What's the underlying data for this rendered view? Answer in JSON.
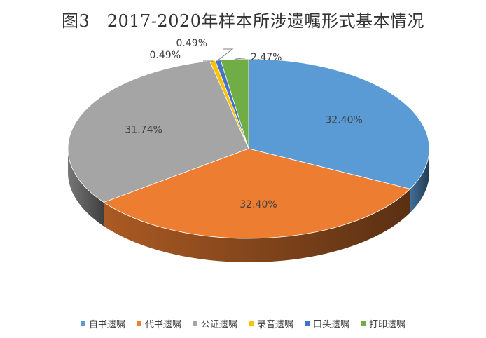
{
  "title": "图3　2017-2020年样本所涉遗嘱形式基本情况",
  "chart_data": {
    "type": "pie",
    "style": "3d",
    "legend_position": "bottom",
    "categories": [
      "自书遗嘱",
      "代书遗嘱",
      "公证遗嘱",
      "录音遗嘱",
      "口头遗嘱",
      "打印遗嘱"
    ],
    "values": [
      32.4,
      32.4,
      31.74,
      0.49,
      0.49,
      2.47
    ],
    "labels": [
      "32.40%",
      "32.40%",
      "31.74%",
      "0.49%",
      "0.49%",
      "2.47%"
    ],
    "colors": [
      "#5B9BD5",
      "#ED7D31",
      "#A5A5A5",
      "#FFC000",
      "#4472C4",
      "#70AD47"
    ],
    "unit": "%"
  }
}
